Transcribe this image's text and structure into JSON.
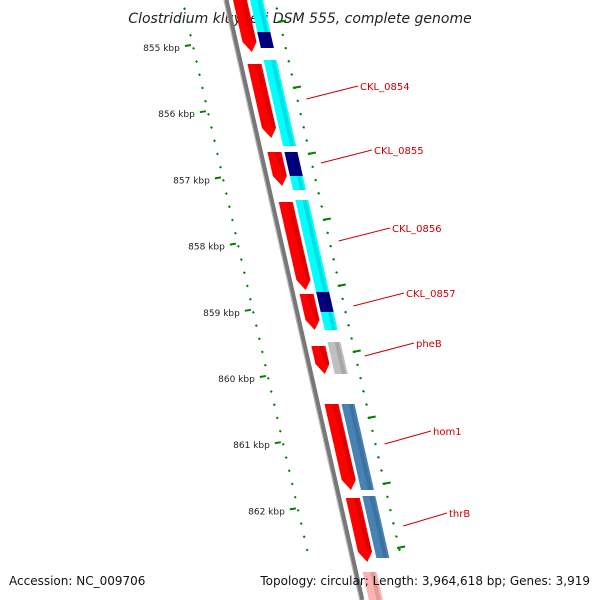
{
  "title": "Clostridium kluyveri DSM 555, complete genome",
  "footer": {
    "accession": "Accession: NC_009706",
    "topology": "Topology: circular; Length: 3,964,618 bp; Genes: 3,919"
  },
  "colors": {
    "backbone": "#777777",
    "gene_red": "#ff0000",
    "gene_red_light": "#ffb3b3",
    "cds_cyan": "#00ffff",
    "cds_navy": "#000080",
    "cds_grey": "#bfbfbf",
    "cds_steel": "#4682b4",
    "tick_green": "#008000",
    "label_red": "#cc0000"
  },
  "kbp_marks": [
    "855 kbp",
    "856 kbp",
    "857 kbp",
    "858 kbp",
    "859 kbp",
    "860 kbp",
    "861 kbp",
    "862 kbp"
  ],
  "genes": [
    {
      "label": "CKL_0854"
    },
    {
      "label": "CKL_0855"
    },
    {
      "label": "CKL_0856"
    },
    {
      "label": "CKL_0857"
    },
    {
      "label": "pheB"
    },
    {
      "label": "hom1"
    },
    {
      "label": "thrB"
    }
  ]
}
